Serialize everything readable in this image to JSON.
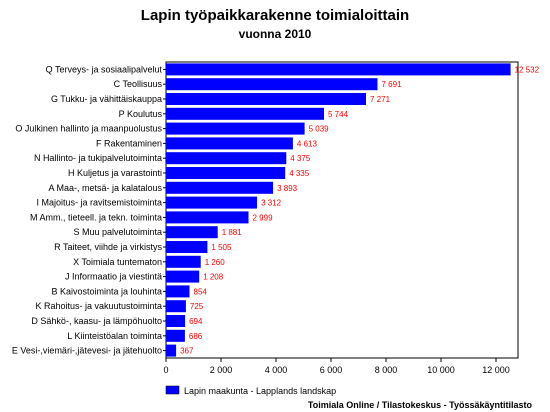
{
  "chart_data": {
    "type": "bar",
    "orientation": "horizontal",
    "title": "Lapin työpaikkarakenne toimialoittain",
    "subtitle": "vuonna 2010",
    "categories": [
      "Q Terveys- ja sosiaalipalvelut",
      "C Teollisuus",
      "G Tukku- ja vähittäiskauppa",
      "P Koulutus",
      "O Julkinen hallinto ja maanpuolustus",
      "F Rakentaminen",
      "N Hallinto- ja tukipalvelutoiminta",
      "H Kuljetus ja varastointi",
      "A Maa-, metsä- ja kalatalous",
      "I Majoitus- ja ravitsemistoiminta",
      "M Amm., tieteell. ja tekn. toiminta",
      "S Muu palvelutoiminta",
      "R Taiteet, viihde ja virkistys",
      "X Toimiala tuntematon",
      "J Informaatio ja viestintä",
      "B Kaivostoiminta ja louhinta",
      "K Rahoitus- ja vakuutustoiminta",
      "D Sähkö-, kaasu- ja lämpöhuolto",
      "L Kiinteistöalan toiminta",
      "E Vesi-,viemäri-,jätevesi- ja jätehuolto"
    ],
    "series": [
      {
        "name": "Lapin maakunta - Lapplands landskap",
        "color": "#0000ff",
        "values": [
          12532,
          7691,
          7271,
          5744,
          5039,
          4613,
          4375,
          4335,
          3893,
          3312,
          2999,
          1881,
          1505,
          1260,
          1208,
          854,
          725,
          694,
          686,
          367
        ]
      }
    ],
    "value_labels": [
      "12 532",
      "7 691",
      "7 271",
      "5 744",
      "5 039",
      "4 613",
      "4 375",
      "4 335",
      "3 893",
      "3 312",
      "2 999",
      "1 881",
      "1 505",
      "1 260",
      "1 208",
      "854",
      "725",
      "694",
      "686",
      "367"
    ],
    "value_label_color": "#ff0000",
    "xlim": [
      0,
      12800
    ],
    "xticks": [
      0,
      2000,
      4000,
      6000,
      8000,
      10000,
      12000
    ],
    "xtick_labels": [
      "0",
      "2 000",
      "4 000",
      "6 000",
      "8 000",
      "10 000",
      "12 000"
    ],
    "grid": false,
    "legend_position": "bottom-left",
    "source": "Toimiala Online / Tilastokeskus - Työssäkäyntitilasto"
  }
}
